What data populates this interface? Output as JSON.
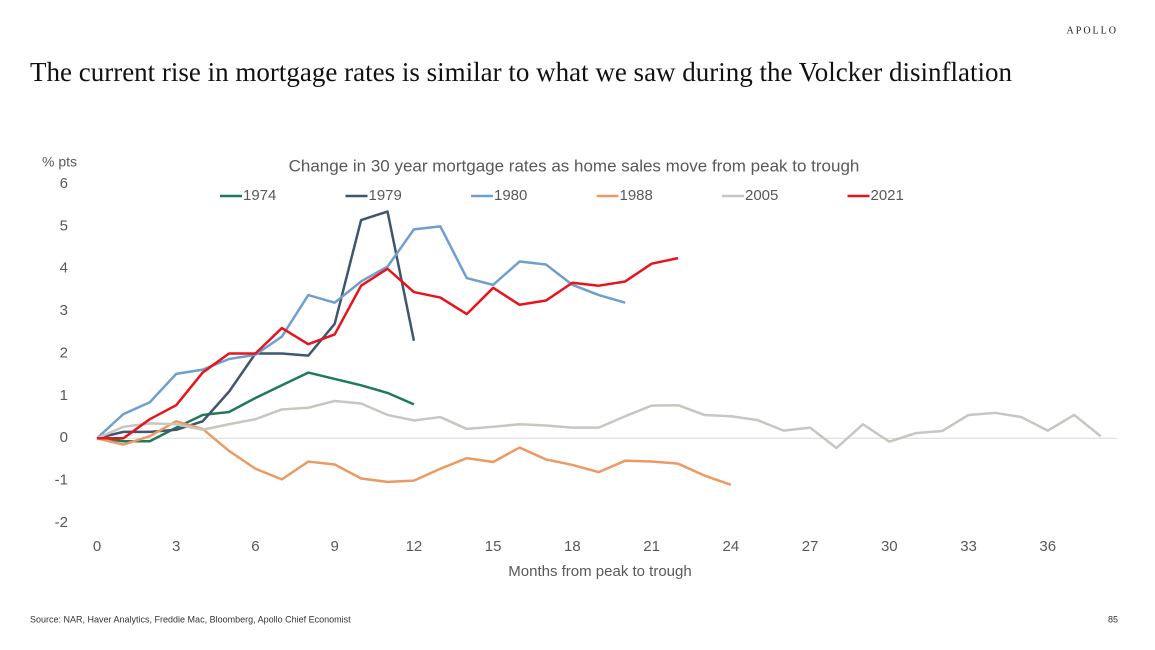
{
  "brand": "APOLLO",
  "slide_title": "The current rise in mortgage rates is similar to what we saw during the Volcker disinflation",
  "source": "Source: NAR, Haver Analytics, Freddie Mac, Bloomberg, Apollo Chief Economist",
  "page_number": "85",
  "chart_data": {
    "type": "line",
    "title": "Change in 30 year mortgage rates as home sales move from peak to trough",
    "y_label": "% pts",
    "x_label": "Months from peak to trough",
    "x": [
      0,
      1,
      2,
      3,
      4,
      5,
      6,
      7,
      8,
      9,
      10,
      11,
      12,
      13,
      14,
      15,
      16,
      17,
      18,
      19,
      20,
      21,
      22,
      23,
      24,
      25,
      26,
      27,
      28,
      29,
      30,
      31,
      32,
      33,
      34,
      35,
      36,
      37,
      38
    ],
    "xlim": [
      0,
      39
    ],
    "xticks": [
      0,
      3,
      6,
      9,
      12,
      15,
      18,
      21,
      24,
      27,
      30,
      33,
      36
    ],
    "ylim": [
      -2,
      6
    ],
    "yticks": [
      -2,
      -1,
      0,
      1,
      2,
      3,
      4,
      5,
      6
    ],
    "grid": false,
    "legend": "top",
    "series": [
      {
        "name": "1974",
        "color": "#1e7a5a",
        "values": [
          0,
          -0.07,
          -0.07,
          0.25,
          0.55,
          0.62,
          0.95,
          1.25,
          1.55,
          1.4,
          1.25,
          1.07,
          0.8,
          null,
          null,
          null,
          null,
          null,
          null,
          null,
          null,
          null,
          null,
          null,
          null,
          null,
          null,
          null,
          null,
          null,
          null,
          null,
          null,
          null,
          null,
          null,
          null,
          null,
          null
        ]
      },
      {
        "name": "1979",
        "color": "#3f5670",
        "values": [
          0,
          0.15,
          0.15,
          0.2,
          0.4,
          1.1,
          2.0,
          2.0,
          1.95,
          2.7,
          5.15,
          5.35,
          2.3,
          null,
          null,
          null,
          null,
          null,
          null,
          null,
          null,
          null,
          null,
          null,
          null,
          null,
          null,
          null,
          null,
          null,
          null,
          null,
          null,
          null,
          null,
          null,
          null,
          null,
          null
        ]
      },
      {
        "name": "1980",
        "color": "#6f9fd0",
        "values": [
          0,
          0.57,
          0.85,
          1.52,
          1.62,
          1.87,
          1.97,
          2.4,
          3.38,
          3.2,
          3.7,
          4.05,
          4.93,
          5.0,
          3.78,
          3.62,
          4.17,
          4.1,
          3.62,
          3.38,
          3.2,
          null,
          null,
          null,
          null,
          null,
          null,
          null,
          null,
          null,
          null,
          null,
          null,
          null,
          null,
          null,
          null,
          null,
          null
        ]
      },
      {
        "name": "1988",
        "color": "#ec9a64",
        "values": [
          0,
          -0.15,
          0.05,
          0.4,
          0.22,
          -0.3,
          -0.72,
          -0.97,
          -0.55,
          -0.62,
          -0.95,
          -1.03,
          -1.0,
          -0.72,
          -0.47,
          -0.56,
          -0.22,
          -0.5,
          -0.63,
          -0.8,
          -0.53,
          -0.55,
          -0.6,
          -0.88,
          -1.1,
          null,
          null,
          null,
          null,
          null,
          null,
          null,
          null,
          null,
          null,
          null,
          null,
          null,
          null
        ]
      },
      {
        "name": "2005",
        "color": "#c9c5bf",
        "values": [
          0,
          0.27,
          0.35,
          0.33,
          0.2,
          0.33,
          0.45,
          0.68,
          0.72,
          0.88,
          0.82,
          0.55,
          0.42,
          0.5,
          0.22,
          0.27,
          0.33,
          0.3,
          0.25,
          0.25,
          0.52,
          0.77,
          0.78,
          0.55,
          0.52,
          0.43,
          0.18,
          0.25,
          -0.23,
          0.33,
          -0.08,
          0.12,
          0.17,
          0.55,
          0.6,
          0.5,
          0.18,
          0.55,
          0.05
        ]
      },
      {
        "name": "2021",
        "color": "#e8141c",
        "values": [
          0,
          0,
          0.45,
          0.78,
          1.55,
          2.0,
          2.0,
          2.6,
          2.22,
          2.45,
          3.6,
          4.0,
          3.45,
          3.32,
          2.93,
          3.55,
          3.15,
          3.25,
          3.67,
          3.6,
          3.7,
          4.12,
          4.25,
          null,
          null,
          null,
          null,
          null,
          null,
          null,
          null,
          null,
          null,
          null,
          null,
          null,
          null,
          null,
          null
        ]
      }
    ]
  }
}
